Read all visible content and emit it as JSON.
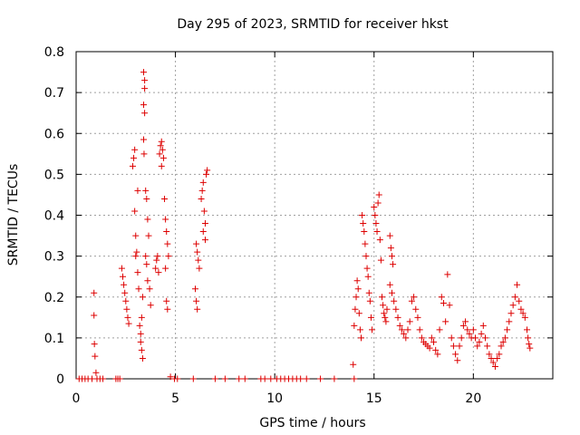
{
  "chart_data": {
    "type": "scatter",
    "title": "Day 295 of 2023, SRMTID for receiver hkst",
    "xlabel": "GPS time / hours",
    "ylabel": "SRMTID / TECUs",
    "xlim": [
      0,
      24
    ],
    "ylim": [
      0,
      0.8
    ],
    "xticks": [
      0,
      5,
      10,
      15,
      20
    ],
    "yticks": [
      0,
      0.1,
      0.2,
      0.3,
      0.4,
      0.5,
      0.6,
      0.7,
      0.8
    ],
    "xtick_labels": [
      "0",
      "5",
      "10",
      "15",
      "20"
    ],
    "ytick_labels": [
      "0",
      "0.1",
      "0.2",
      "0.3",
      "0.4",
      "0.5",
      "0.6",
      "0.7",
      "0.8"
    ],
    "grid": true,
    "marker": "+",
    "series": [
      {
        "name": "SRMTID",
        "color": "#dd0000",
        "points": [
          [
            0.15,
            0
          ],
          [
            0.3,
            0
          ],
          [
            0.45,
            0
          ],
          [
            0.6,
            0
          ],
          [
            0.8,
            0
          ],
          [
            0.9,
            0.21
          ],
          [
            0.9,
            0.155
          ],
          [
            0.92,
            0.085
          ],
          [
            0.95,
            0.055
          ],
          [
            1.0,
            0.015
          ],
          [
            1.05,
            0
          ],
          [
            1.2,
            0
          ],
          [
            1.35,
            0
          ],
          [
            2.0,
            0
          ],
          [
            2.1,
            0
          ],
          [
            2.2,
            0
          ],
          [
            2.3,
            0.27
          ],
          [
            2.35,
            0.25
          ],
          [
            2.4,
            0.23
          ],
          [
            2.45,
            0.21
          ],
          [
            2.5,
            0.19
          ],
          [
            2.55,
            0.17
          ],
          [
            2.6,
            0.15
          ],
          [
            2.65,
            0.135
          ],
          [
            2.85,
            0.52
          ],
          [
            2.9,
            0.54
          ],
          [
            2.95,
            0.56
          ],
          [
            2.95,
            0.41
          ],
          [
            3.0,
            0.35
          ],
          [
            3.0,
            0.3
          ],
          [
            3.05,
            0.31
          ],
          [
            3.1,
            0.26
          ],
          [
            3.15,
            0.22
          ],
          [
            3.1,
            0.46
          ],
          [
            3.2,
            0.13
          ],
          [
            3.25,
            0.11
          ],
          [
            3.25,
            0.09
          ],
          [
            3.3,
            0.07
          ],
          [
            3.35,
            0.05
          ],
          [
            3.3,
            0.15
          ],
          [
            3.35,
            0.2
          ],
          [
            3.4,
            0.75
          ],
          [
            3.45,
            0.73
          ],
          [
            3.45,
            0.71
          ],
          [
            3.4,
            0.67
          ],
          [
            3.45,
            0.65
          ],
          [
            3.4,
            0.585
          ],
          [
            3.42,
            0.55
          ],
          [
            3.5,
            0.46
          ],
          [
            3.55,
            0.44
          ],
          [
            3.6,
            0.39
          ],
          [
            3.65,
            0.35
          ],
          [
            3.5,
            0.3
          ],
          [
            3.55,
            0.28
          ],
          [
            3.6,
            0.24
          ],
          [
            3.7,
            0.22
          ],
          [
            3.75,
            0.18
          ],
          [
            4.0,
            0.27
          ],
          [
            4.05,
            0.29
          ],
          [
            4.1,
            0.3
          ],
          [
            4.15,
            0.26
          ],
          [
            4.2,
            0.55
          ],
          [
            4.25,
            0.57
          ],
          [
            4.3,
            0.58
          ],
          [
            4.35,
            0.56
          ],
          [
            4.4,
            0.54
          ],
          [
            4.3,
            0.52
          ],
          [
            4.45,
            0.44
          ],
          [
            4.5,
            0.39
          ],
          [
            4.55,
            0.36
          ],
          [
            4.6,
            0.33
          ],
          [
            4.65,
            0.3
          ],
          [
            4.5,
            0.27
          ],
          [
            4.55,
            0.19
          ],
          [
            4.6,
            0.17
          ],
          [
            4.75,
            0.005
          ],
          [
            4.95,
            0
          ],
          [
            5.1,
            0
          ],
          [
            5.9,
            0
          ],
          [
            6.05,
            0.33
          ],
          [
            6.1,
            0.31
          ],
          [
            6.15,
            0.29
          ],
          [
            6.2,
            0.27
          ],
          [
            6.0,
            0.22
          ],
          [
            6.05,
            0.19
          ],
          [
            6.1,
            0.17
          ],
          [
            6.3,
            0.44
          ],
          [
            6.35,
            0.46
          ],
          [
            6.4,
            0.48
          ],
          [
            6.45,
            0.41
          ],
          [
            6.5,
            0.38
          ],
          [
            6.4,
            0.36
          ],
          [
            6.55,
            0.5
          ],
          [
            6.6,
            0.51
          ],
          [
            6.5,
            0.34
          ],
          [
            7.0,
            0
          ],
          [
            7.5,
            0
          ],
          [
            8.2,
            0
          ],
          [
            8.5,
            0
          ],
          [
            9.3,
            0
          ],
          [
            9.5,
            0
          ],
          [
            9.8,
            0
          ],
          [
            10.1,
            0
          ],
          [
            10.3,
            0
          ],
          [
            10.5,
            0
          ],
          [
            10.7,
            0
          ],
          [
            10.9,
            0
          ],
          [
            11.1,
            0
          ],
          [
            11.3,
            0
          ],
          [
            11.6,
            0
          ],
          [
            12.3,
            0
          ],
          [
            13.0,
            0
          ],
          [
            14.0,
            0
          ],
          [
            13.95,
            0.035
          ],
          [
            14.0,
            0.13
          ],
          [
            14.05,
            0.17
          ],
          [
            14.1,
            0.2
          ],
          [
            14.15,
            0.24
          ],
          [
            14.2,
            0.22
          ],
          [
            14.25,
            0.16
          ],
          [
            14.3,
            0.12
          ],
          [
            14.35,
            0.1
          ],
          [
            14.4,
            0.4
          ],
          [
            14.45,
            0.38
          ],
          [
            14.5,
            0.36
          ],
          [
            14.55,
            0.33
          ],
          [
            14.6,
            0.3
          ],
          [
            14.65,
            0.27
          ],
          [
            14.7,
            0.25
          ],
          [
            14.75,
            0.21
          ],
          [
            14.8,
            0.19
          ],
          [
            14.85,
            0.15
          ],
          [
            14.9,
            0.12
          ],
          [
            15.0,
            0.42
          ],
          [
            15.05,
            0.4
          ],
          [
            15.1,
            0.38
          ],
          [
            15.15,
            0.36
          ],
          [
            15.2,
            0.43
          ],
          [
            15.25,
            0.45
          ],
          [
            15.3,
            0.34
          ],
          [
            15.35,
            0.29
          ],
          [
            15.4,
            0.2
          ],
          [
            15.45,
            0.18
          ],
          [
            15.5,
            0.16
          ],
          [
            15.55,
            0.15
          ],
          [
            15.6,
            0.14
          ],
          [
            15.65,
            0.17
          ],
          [
            15.8,
            0.35
          ],
          [
            15.85,
            0.32
          ],
          [
            15.9,
            0.3
          ],
          [
            15.95,
            0.28
          ],
          [
            15.8,
            0.23
          ],
          [
            15.9,
            0.21
          ],
          [
            16.0,
            0.19
          ],
          [
            16.1,
            0.17
          ],
          [
            16.2,
            0.15
          ],
          [
            16.3,
            0.13
          ],
          [
            16.4,
            0.12
          ],
          [
            16.5,
            0.11
          ],
          [
            16.6,
            0.1
          ],
          [
            16.7,
            0.12
          ],
          [
            16.8,
            0.14
          ],
          [
            16.9,
            0.19
          ],
          [
            17.0,
            0.2
          ],
          [
            17.1,
            0.17
          ],
          [
            17.2,
            0.15
          ],
          [
            17.3,
            0.12
          ],
          [
            17.4,
            0.1
          ],
          [
            17.5,
            0.09
          ],
          [
            17.6,
            0.085
          ],
          [
            17.7,
            0.08
          ],
          [
            17.8,
            0.075
          ],
          [
            17.9,
            0.1
          ],
          [
            18.0,
            0.09
          ],
          [
            18.1,
            0.07
          ],
          [
            18.2,
            0.06
          ],
          [
            18.3,
            0.12
          ],
          [
            18.4,
            0.2
          ],
          [
            18.5,
            0.185
          ],
          [
            18.6,
            0.14
          ],
          [
            18.7,
            0.255
          ],
          [
            18.8,
            0.18
          ],
          [
            18.9,
            0.1
          ],
          [
            19.0,
            0.08
          ],
          [
            19.1,
            0.06
          ],
          [
            19.2,
            0.045
          ],
          [
            19.3,
            0.08
          ],
          [
            19.4,
            0.1
          ],
          [
            19.5,
            0.13
          ],
          [
            19.6,
            0.14
          ],
          [
            19.7,
            0.12
          ],
          [
            19.8,
            0.11
          ],
          [
            19.9,
            0.1
          ],
          [
            20.0,
            0.12
          ],
          [
            20.1,
            0.1
          ],
          [
            20.2,
            0.08
          ],
          [
            20.3,
            0.09
          ],
          [
            20.4,
            0.11
          ],
          [
            20.5,
            0.13
          ],
          [
            20.6,
            0.1
          ],
          [
            20.7,
            0.08
          ],
          [
            20.8,
            0.06
          ],
          [
            20.9,
            0.05
          ],
          [
            21.0,
            0.04
          ],
          [
            21.1,
            0.03
          ],
          [
            21.2,
            0.05
          ],
          [
            21.3,
            0.06
          ],
          [
            21.4,
            0.08
          ],
          [
            21.5,
            0.09
          ],
          [
            21.6,
            0.1
          ],
          [
            21.7,
            0.12
          ],
          [
            21.8,
            0.14
          ],
          [
            21.9,
            0.16
          ],
          [
            22.0,
            0.18
          ],
          [
            22.1,
            0.2
          ],
          [
            22.2,
            0.23
          ],
          [
            22.3,
            0.19
          ],
          [
            22.4,
            0.17
          ],
          [
            22.5,
            0.16
          ],
          [
            22.6,
            0.15
          ],
          [
            22.7,
            0.12
          ],
          [
            22.75,
            0.1
          ],
          [
            22.8,
            0.085
          ],
          [
            22.85,
            0.075
          ]
        ]
      }
    ]
  }
}
